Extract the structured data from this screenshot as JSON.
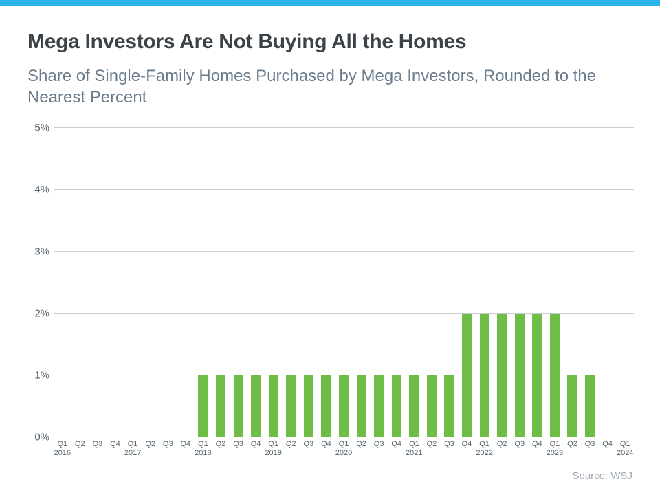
{
  "page": {
    "title": "Mega Investors Are Not Buying All the Homes",
    "subtitle": "Share of Single-Family Homes Purchased by Mega Investors, Rounded to the Nearest Percent",
    "source": "Source: WSJ",
    "accent_color": "#29b5e8"
  },
  "chart_data": {
    "type": "bar",
    "title": "Mega Investors Are Not Buying All the Homes",
    "subtitle": "Share of Single-Family Homes Purchased by Mega Investors, Rounded to the Nearest Percent",
    "xlabel": "",
    "ylabel": "",
    "ylim": [
      0,
      5
    ],
    "grid": true,
    "legend": "none",
    "bar_color": "#6dbd47",
    "yticks": [
      0,
      1,
      2,
      3,
      4,
      5
    ],
    "ytick_labels": [
      "0%",
      "1%",
      "2%",
      "3%",
      "4%",
      "5%"
    ],
    "categories": [
      {
        "label": "Q1",
        "year": "2016"
      },
      {
        "label": "Q2"
      },
      {
        "label": "Q3"
      },
      {
        "label": "Q4"
      },
      {
        "label": "Q1",
        "year": "2017"
      },
      {
        "label": "Q2"
      },
      {
        "label": "Q3"
      },
      {
        "label": "Q4"
      },
      {
        "label": "Q1",
        "year": "2018"
      },
      {
        "label": "Q2"
      },
      {
        "label": "Q3"
      },
      {
        "label": "Q4"
      },
      {
        "label": "Q1",
        "year": "2019"
      },
      {
        "label": "Q2"
      },
      {
        "label": "Q3"
      },
      {
        "label": "Q4"
      },
      {
        "label": "Q1",
        "year": "2020"
      },
      {
        "label": "Q2"
      },
      {
        "label": "Q3"
      },
      {
        "label": "Q4"
      },
      {
        "label": "Q1",
        "year": "2021"
      },
      {
        "label": "Q2"
      },
      {
        "label": "Q3"
      },
      {
        "label": "Q4"
      },
      {
        "label": "Q1",
        "year": "2022"
      },
      {
        "label": "Q2"
      },
      {
        "label": "Q3"
      },
      {
        "label": "Q4"
      },
      {
        "label": "Q1",
        "year": "2023"
      },
      {
        "label": "Q2"
      },
      {
        "label": "Q3"
      },
      {
        "label": "Q4"
      },
      {
        "label": "Q1",
        "year": "2024"
      }
    ],
    "values": [
      0,
      0,
      0,
      0,
      0,
      0,
      0,
      0,
      1,
      1,
      1,
      1,
      1,
      1,
      1,
      1,
      1,
      1,
      1,
      1,
      1,
      1,
      1,
      2,
      2,
      2,
      2,
      2,
      2,
      1,
      1,
      0,
      0
    ]
  }
}
